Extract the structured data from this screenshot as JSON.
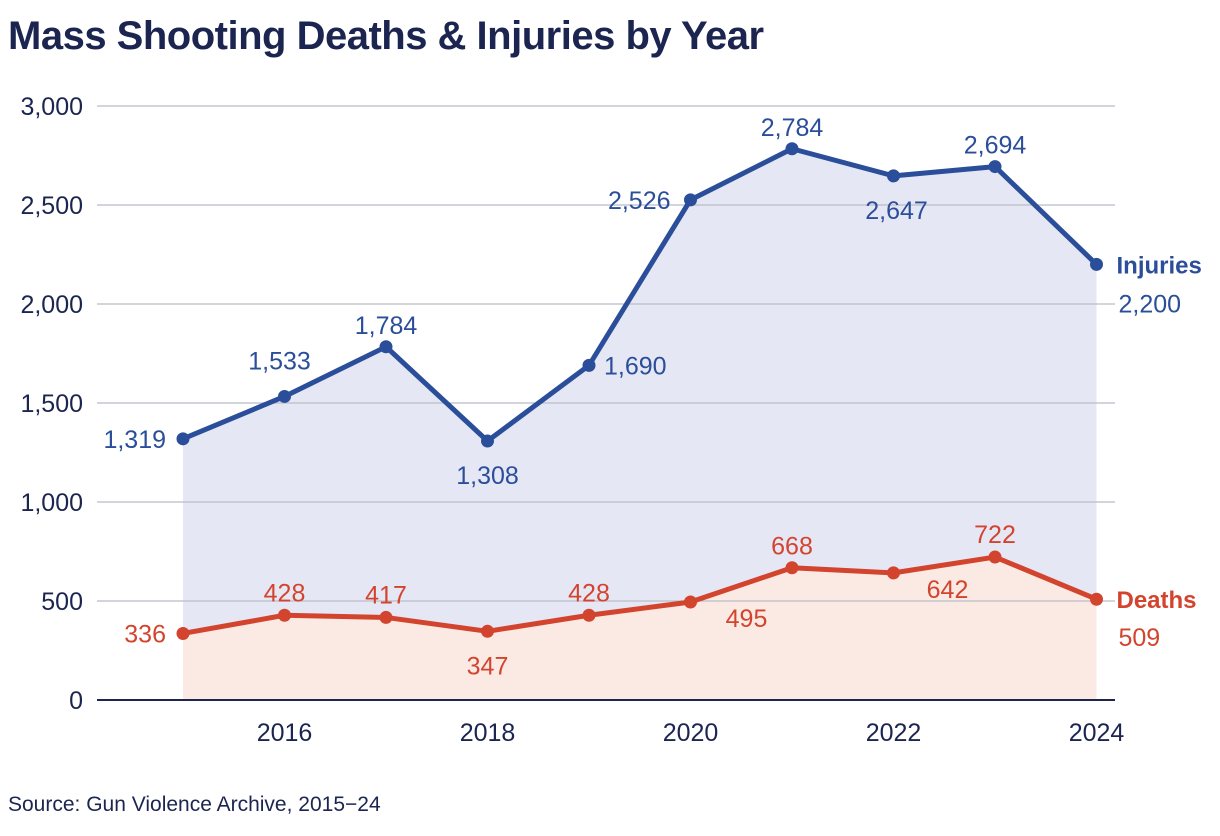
{
  "title": "Mass Shooting Deaths & Injuries by Year",
  "source": "Source: Gun Violence Archive, 2015−24",
  "colors": {
    "injuries": "#2b4e9a",
    "deaths": "#d3442e",
    "injuries_fill": "#e6e7f4",
    "deaths_fill": "#fbeae3",
    "grid": "#b9bcc8",
    "axis": "#1b2550",
    "text": "#1b2550"
  },
  "chart_data": {
    "type": "line",
    "title": "Mass Shooting Deaths & Injuries by Year",
    "x": [
      2015,
      2016,
      2017,
      2018,
      2019,
      2020,
      2021,
      2022,
      2023,
      2024
    ],
    "x_tick_labels": [
      "2016",
      "2018",
      "2020",
      "2022",
      "2024"
    ],
    "x_ticks": [
      2016,
      2018,
      2020,
      2022,
      2024
    ],
    "y_ticks": [
      0,
      500,
      1000,
      1500,
      2000,
      2500,
      3000
    ],
    "y_tick_labels": [
      "0",
      "500",
      "1,000",
      "1,500",
      "2,000",
      "2,500",
      "3,000"
    ],
    "ylim": [
      0,
      3000
    ],
    "grid": true,
    "series": [
      {
        "name": "Injuries",
        "values": [
          1319,
          1533,
          1784,
          1308,
          1690,
          2526,
          2784,
          2647,
          2694,
          2200
        ],
        "labels": [
          "1,319",
          "1,533",
          "1,784",
          "1,308",
          "1,690",
          "2,526",
          "2,784",
          "2,647",
          "2,694",
          "2,200"
        ]
      },
      {
        "name": "Deaths",
        "values": [
          336,
          428,
          417,
          347,
          428,
          495,
          668,
          642,
          722,
          509
        ],
        "labels": [
          "336",
          "428",
          "417",
          "347",
          "428",
          "495",
          "668",
          "642",
          "722",
          "509"
        ]
      }
    ]
  }
}
